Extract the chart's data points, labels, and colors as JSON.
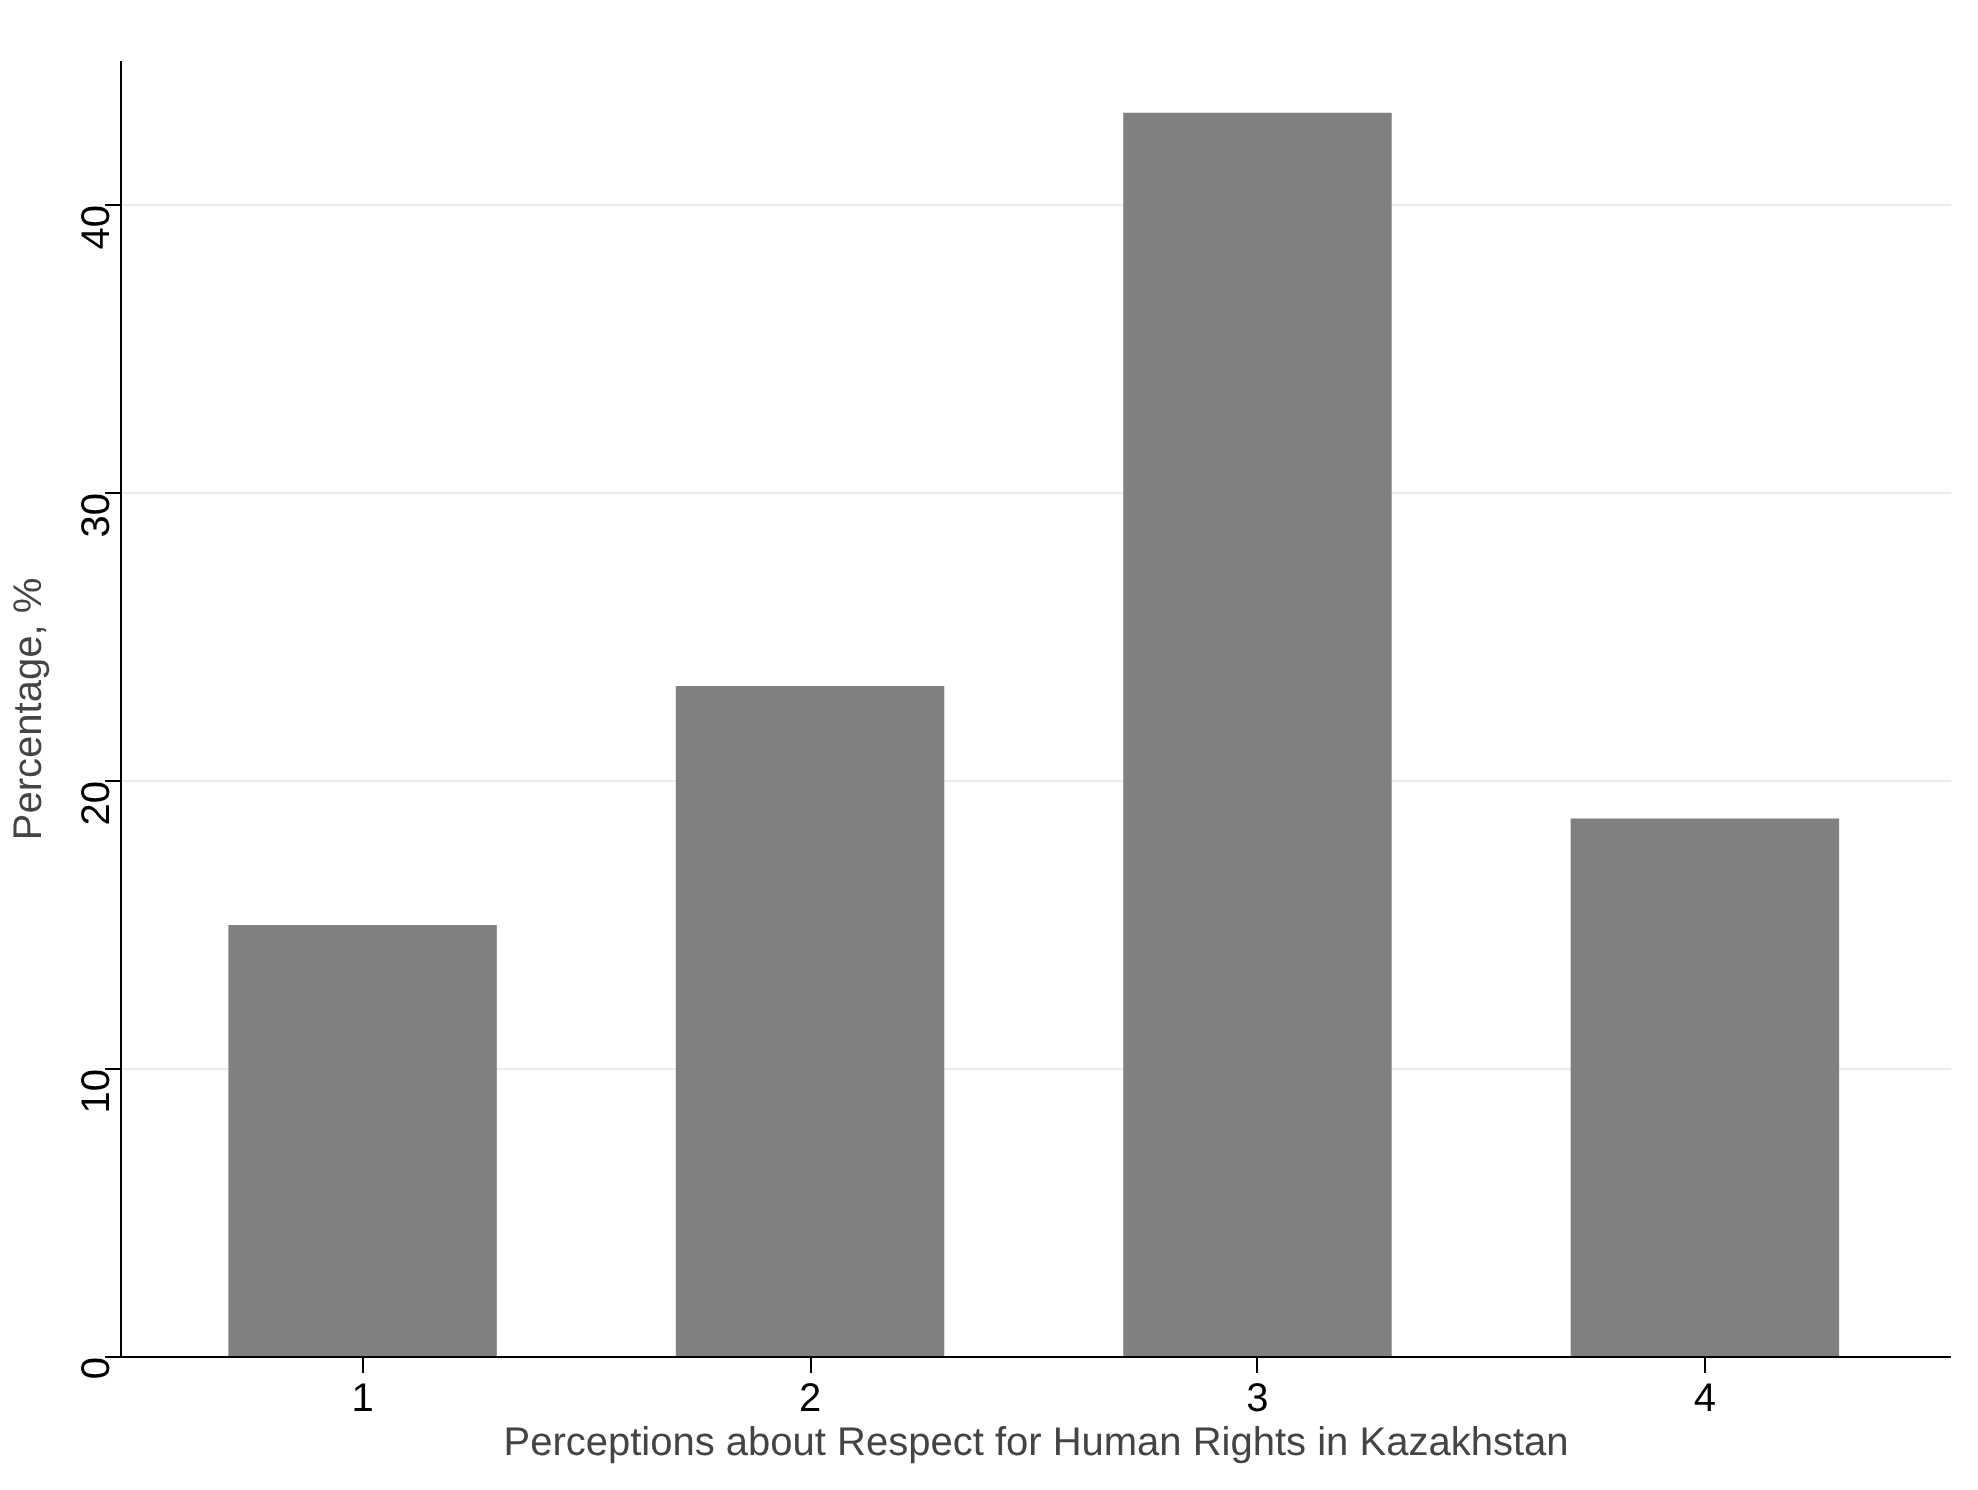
{
  "chart_data": {
    "type": "bar",
    "xlabel": "Perceptions about Respect for Human Rights in Kazakhstan",
    "ylabel": "Percentage, %",
    "categories": [
      "1",
      "2",
      "3",
      "4"
    ],
    "values": [
      15.0,
      23.3,
      43.2,
      18.7
    ],
    "color": "#808080",
    "ylim": [
      0,
      45
    ],
    "yticks": [
      0,
      10,
      20,
      30,
      40
    ],
    "grid": "y"
  }
}
